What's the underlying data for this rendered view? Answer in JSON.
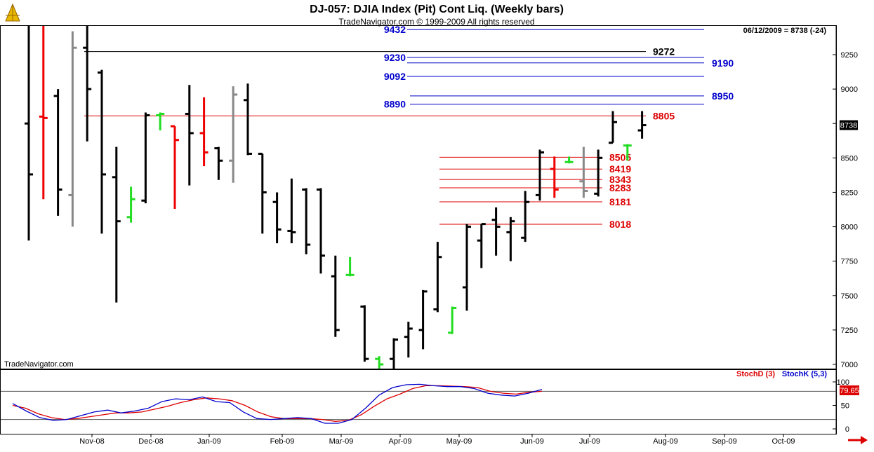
{
  "header": {
    "title": "DJ-057:  DJIA Index (Pit) Cont Liq.  (Weekly bars)",
    "subtitle": "TradeNavigator.com © 1999-2009 All rights reserved",
    "date_readout": "06/12/2009 = 8738 (-24)",
    "last_price_tag": "8738",
    "watermark": "TradeNavigator.com"
  },
  "colors": {
    "up_bar": "#000000",
    "down_bar": "#ee0000",
    "neutral_bar": "#888888",
    "signal_bar": "#22dd22",
    "resistance": "#0000cc",
    "support": "#dd0000",
    "stochD": "#dd0000",
    "stochK": "#0000cc"
  },
  "chart_data": [
    {
      "type": "ohlc",
      "title": "DJ-057:  DJIA Index (Pit) Cont Liq.  (Weekly bars)",
      "ylim": [
        6950,
        9480
      ],
      "yticks": [
        7000,
        7250,
        7500,
        7750,
        8000,
        8250,
        8500,
        8750,
        9000,
        9250
      ],
      "xlabels": [
        "Nov-08",
        "Dec-08",
        "Jan-09",
        "Feb-09",
        "Mar-09",
        "Apr-09",
        "May-09",
        "Jun-09",
        "Jul-09",
        "Aug-09",
        "Sep-09",
        "Oct-09"
      ],
      "bars": [
        {
          "h": 9480,
          "l": 7900,
          "o": 8750,
          "c": 8380,
          "color": "black"
        },
        {
          "h": 9480,
          "l": 8200,
          "o": 8800,
          "c": 8790,
          "color": "red"
        },
        {
          "h": 9000,
          "l": 8080,
          "o": 8950,
          "c": 8270,
          "color": "black"
        },
        {
          "h": 9420,
          "l": 8000,
          "o": 8230,
          "c": 9300,
          "color": "gray"
        },
        {
          "h": 9480,
          "l": 8620,
          "o": 9300,
          "c": 9000,
          "color": "black"
        },
        {
          "h": 9140,
          "l": 7950,
          "o": 9120,
          "c": 8380,
          "color": "black"
        },
        {
          "h": 8580,
          "l": 7450,
          "o": 8360,
          "c": 8040,
          "color": "black"
        },
        {
          "h": 8290,
          "l": 8030,
          "o": 8070,
          "c": 8200,
          "color": "green"
        },
        {
          "h": 8830,
          "l": 8170,
          "o": 8190,
          "c": 8810,
          "color": "black"
        },
        {
          "h": 8830,
          "l": 8700,
          "o": 8810,
          "c": 8820,
          "color": "green"
        },
        {
          "h": 8730,
          "l": 8130,
          "o": 8730,
          "c": 8630,
          "color": "red"
        },
        {
          "h": 9030,
          "l": 8300,
          "o": 8820,
          "c": 8680,
          "color": "black"
        },
        {
          "h": 8940,
          "l": 8440,
          "o": 8680,
          "c": 8540,
          "color": "red"
        },
        {
          "h": 8580,
          "l": 8340,
          "o": 8570,
          "c": 8480,
          "color": "black"
        },
        {
          "h": 9020,
          "l": 8320,
          "o": 8480,
          "c": 8960,
          "color": "gray"
        },
        {
          "h": 9040,
          "l": 8520,
          "o": 8920,
          "c": 8530,
          "color": "black"
        },
        {
          "h": 8530,
          "l": 7950,
          "o": 8530,
          "c": 8250,
          "color": "black"
        },
        {
          "h": 8250,
          "l": 7880,
          "o": 8180,
          "c": 7980,
          "color": "black"
        },
        {
          "h": 8350,
          "l": 7880,
          "o": 7970,
          "c": 7960,
          "color": "black"
        },
        {
          "h": 8280,
          "l": 7800,
          "o": 8270,
          "c": 7870,
          "color": "black"
        },
        {
          "h": 8280,
          "l": 7660,
          "o": 8270,
          "c": 7790,
          "color": "black"
        },
        {
          "h": 7790,
          "l": 7200,
          "o": 7640,
          "c": 7250,
          "color": "black"
        },
        {
          "h": 7780,
          "l": 7640,
          "o": 7650,
          "c": 7650,
          "color": "green"
        },
        {
          "h": 7430,
          "l": 7020,
          "o": 7420,
          "c": 7040,
          "color": "black"
        },
        {
          "h": 7060,
          "l": 6960,
          "o": 7040,
          "c": 7000,
          "color": "green"
        },
        {
          "h": 7190,
          "l": 6950,
          "o": 7040,
          "c": 7180,
          "color": "black"
        },
        {
          "h": 7310,
          "l": 7050,
          "o": 7200,
          "c": 7260,
          "color": "black"
        },
        {
          "h": 7540,
          "l": 7110,
          "o": 7250,
          "c": 7530,
          "color": "black"
        },
        {
          "h": 7890,
          "l": 7380,
          "o": 7400,
          "c": 7780,
          "color": "black"
        },
        {
          "h": 7420,
          "l": 7220,
          "o": 7230,
          "c": 7410,
          "color": "green"
        },
        {
          "h": 8020,
          "l": 7390,
          "o": 7560,
          "c": 8000,
          "color": "black"
        },
        {
          "h": 8020,
          "l": 7700,
          "o": 7900,
          "c": 8020,
          "color": "black"
        },
        {
          "h": 8140,
          "l": 7790,
          "o": 8050,
          "c": 8000,
          "color": "black"
        },
        {
          "h": 8070,
          "l": 7750,
          "o": 7960,
          "c": 8040,
          "color": "black"
        },
        {
          "h": 8260,
          "l": 7890,
          "o": 7920,
          "c": 8180,
          "color": "black"
        },
        {
          "h": 8560,
          "l": 8190,
          "o": 8230,
          "c": 8540,
          "color": "black"
        },
        {
          "h": 8510,
          "l": 8210,
          "o": 8420,
          "c": 8270,
          "color": "red"
        },
        {
          "h": 8510,
          "l": 8460,
          "o": 8470,
          "c": 8470,
          "color": "green"
        },
        {
          "h": 8580,
          "l": 8210,
          "o": 8330,
          "c": 8260,
          "color": "gray"
        },
        {
          "h": 8560,
          "l": 8220,
          "o": 8240,
          "c": 8500,
          "color": "black"
        },
        {
          "h": 8840,
          "l": 8610,
          "o": 8610,
          "c": 8760,
          "color": "black"
        },
        {
          "h": 8600,
          "l": 8480,
          "o": 8590,
          "c": 8590,
          "color": "green"
        },
        {
          "h": 8840,
          "l": 8640,
          "o": 8700,
          "c": 8738,
          "color": "black"
        }
      ],
      "resistance_levels": [
        {
          "value": 9432,
          "label": "9432"
        },
        {
          "value": 9272,
          "label": "9272"
        },
        {
          "value": 9230,
          "label": "9230"
        },
        {
          "value": 9190,
          "label": "9190"
        },
        {
          "value": 9092,
          "label": "9092"
        },
        {
          "value": 8950,
          "label": "8950"
        },
        {
          "value": 8890,
          "label": "8890"
        }
      ],
      "support_levels": [
        {
          "value": 8805,
          "label": "8805"
        },
        {
          "value": 8505,
          "label": "8505"
        },
        {
          "value": 8419,
          "label": "8419"
        },
        {
          "value": 8343,
          "label": "8343"
        },
        {
          "value": 8283,
          "label": "8283"
        },
        {
          "value": 8181,
          "label": "8181"
        },
        {
          "value": 8018,
          "label": "8018"
        }
      ]
    },
    {
      "type": "line",
      "ylim": [
        0,
        100
      ],
      "yticks": [
        0,
        50,
        100
      ],
      "last_value": "79.65",
      "series": [
        {
          "name": "StochD (3)",
          "values": [
            50,
            44,
            32,
            24,
            20,
            22,
            26,
            30,
            34,
            34,
            36,
            42,
            48,
            56,
            62,
            66,
            64,
            60,
            50,
            36,
            26,
            22,
            22,
            22,
            20,
            16,
            18,
            30,
            48,
            64,
            74,
            86,
            92,
            92,
            91,
            90,
            88,
            80,
            76,
            74,
            78,
            80
          ]
        },
        {
          "name": "StochK (5,3)",
          "values": [
            54,
            38,
            24,
            18,
            20,
            28,
            36,
            40,
            34,
            38,
            44,
            58,
            64,
            62,
            68,
            58,
            56,
            36,
            22,
            20,
            22,
            24,
            22,
            12,
            12,
            20,
            44,
            72,
            88,
            94,
            95,
            92,
            90,
            90,
            86,
            76,
            72,
            70,
            76,
            84
          ]
        }
      ]
    }
  ]
}
